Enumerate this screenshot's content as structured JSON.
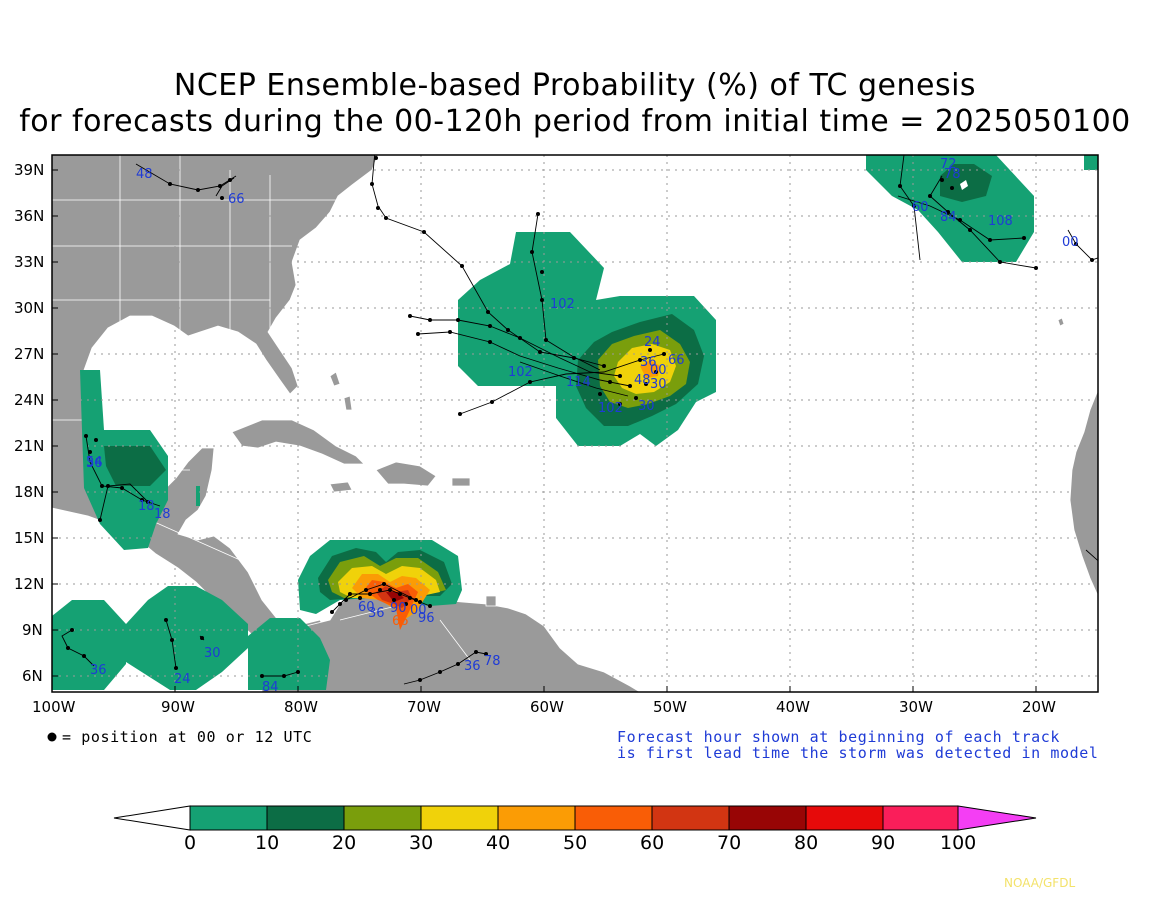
{
  "title_line1": "NCEP Ensemble-based Probability (%) of TC genesis",
  "title_line2": "for forecasts during the 00-120h period from initial time = 2025050100",
  "lat_labels": [
    "39N",
    "36N",
    "33N",
    "30N",
    "27N",
    "24N",
    "21N",
    "18N",
    "15N",
    "12N",
    "9N",
    "6N"
  ],
  "lon_labels": [
    "100W",
    "90W",
    "80W",
    "70W",
    "60W",
    "50W",
    "40W",
    "30W",
    "20W"
  ],
  "legend_dot_text": "= position at 00 or 12 UTC",
  "note_line1": "Forecast hour shown at beginning of each track",
  "note_line2": "is first lead time the storm was detected in model",
  "colorbar": {
    "ticks": [
      "0",
      "10",
      "20",
      "30",
      "40",
      "50",
      "60",
      "70",
      "80",
      "90",
      "100"
    ],
    "colors": [
      "#ffffff",
      "#15a173",
      "#0c6d45",
      "#7a9e0c",
      "#f0d20a",
      "#fb9c05",
      "#f95d06",
      "#d23512",
      "#980505",
      "#e60a0a",
      "#fa1e5a",
      "#f43ef4"
    ]
  },
  "credit": "NOAA/GFDL",
  "track_labels": [
    "48",
    "66",
    "72",
    "78",
    "60",
    "84",
    "108",
    "00",
    "102",
    "24",
    "36",
    "66",
    "48",
    "00",
    "30",
    "102",
    "114",
    "102",
    "30",
    "36",
    "54",
    "36",
    "18",
    "18",
    "60",
    "36",
    "90",
    "00",
    "66",
    "96",
    "36",
    "78",
    "36",
    "24",
    "30",
    "84",
    "90"
  ]
}
